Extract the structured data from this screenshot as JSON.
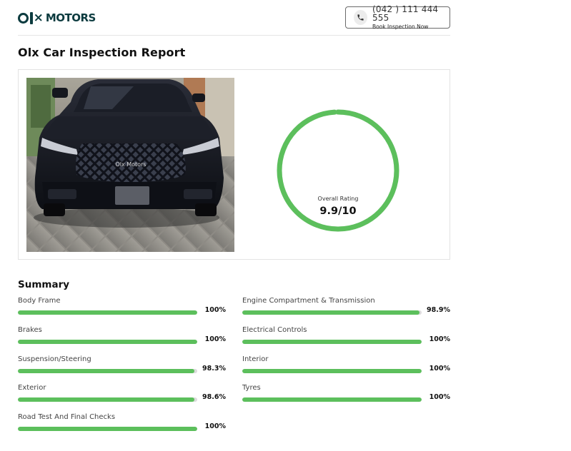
{
  "header": {
    "logo_text": "MOTORS",
    "logo_mark": "OLX",
    "phone_icon": "phone-icon",
    "call_number": "(042 ) 111 444 555",
    "call_subtext": "Book Inspection Now"
  },
  "page_title": "Olx Car Inspection Report",
  "car_image": {
    "badge_text": "Olx Motors"
  },
  "rating": {
    "label": "Overall Rating",
    "value_text": "9.9/10",
    "value": 9.9,
    "max": 10,
    "color": "#5cbf5c"
  },
  "summary": {
    "title": "Summary",
    "bar_color": "#5cbf5c",
    "track_color": "#dcdcdc",
    "items": [
      {
        "label": "Body Frame",
        "percent": 100,
        "value_text": "100%"
      },
      {
        "label": "Engine Compartment & Transmission",
        "percent": 98.9,
        "value_text": "98.9%"
      },
      {
        "label": "Brakes",
        "percent": 100,
        "value_text": "100%"
      },
      {
        "label": "Electrical Controls",
        "percent": 100,
        "value_text": "100%"
      },
      {
        "label": "Suspension/Steering",
        "percent": 98.3,
        "value_text": "98.3%"
      },
      {
        "label": "Interior",
        "percent": 100,
        "value_text": "100%"
      },
      {
        "label": "Exterior",
        "percent": 98.6,
        "value_text": "98.6%"
      },
      {
        "label": "Tyres",
        "percent": 100,
        "value_text": "100%"
      },
      {
        "label": "Road Test And Final Checks",
        "percent": 100,
        "value_text": "100%"
      }
    ]
  }
}
